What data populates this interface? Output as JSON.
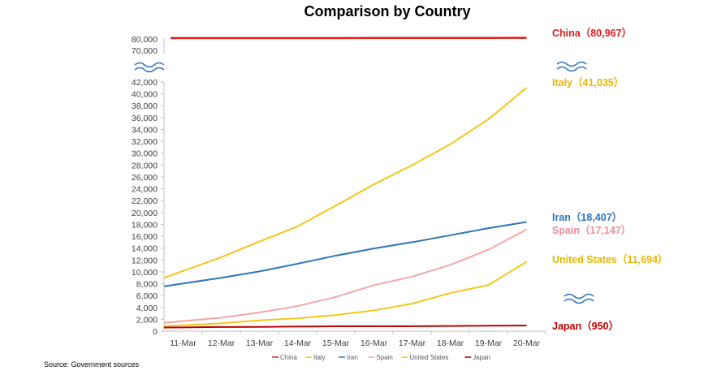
{
  "chart_data": {
    "type": "line",
    "title": "Comparison by Country",
    "source": "Source: Government sources",
    "categories": [
      "11-Mar",
      "12-Mar",
      "13-Mar",
      "14-Mar",
      "15-Mar",
      "16-Mar",
      "17-Mar",
      "18-Mar",
      "19-Mar",
      "20-Mar"
    ],
    "y_ticks_lower": [
      "0",
      "2,000",
      "4,000",
      "6,000",
      "8,000",
      "10,000",
      "12,000",
      "14,000",
      "16,000",
      "18,000",
      "20,000",
      "22,000",
      "24,000",
      "26,000",
      "28,000",
      "30,000",
      "32,000",
      "34,000",
      "36,000",
      "38,000",
      "40,000",
      "42,000"
    ],
    "y_ticks_upper": [
      "70,000",
      "80,000"
    ],
    "ylim_lower": [
      0,
      42000
    ],
    "ylim_upper": [
      70000,
      80000
    ],
    "axis_break": true,
    "grid": false,
    "legend_position": "bottom",
    "series": [
      {
        "name": "China",
        "color": "#e31a1c",
        "values": [
          80778,
          80793,
          80813,
          80824,
          80844,
          80860,
          80881,
          80894,
          80928,
          80967
        ],
        "end_label": "China（80,967）",
        "label_color": "#e31a1c"
      },
      {
        "name": "Italy",
        "color": "#f5c518",
        "values": [
          10149,
          12462,
          15113,
          17660,
          21157,
          24747,
          27980,
          31506,
          35713,
          41035
        ],
        "end_label": "Italy（41,035）",
        "label_color": "#e6b800"
      },
      {
        "name": "Iran",
        "color": "#2e75b6",
        "values": [
          8042,
          9000,
          10075,
          11364,
          12729,
          13938,
          14991,
          16169,
          17361,
          18407
        ],
        "end_label": "Iran（18,407）",
        "label_color": "#2e75b6"
      },
      {
        "name": "Spain",
        "color": "#f4a6a6",
        "values": [
          1695,
          2277,
          3146,
          4231,
          5753,
          7753,
          9191,
          11178,
          13716,
          17147
        ],
        "end_label": "Spain（17,147）",
        "label_color": "#f28b9b"
      },
      {
        "name": "United States",
        "color": "#f5c518",
        "values": [
          1004,
          1323,
          1832,
          2179,
          2727,
          3499,
          4632,
          6421,
          7786,
          11694
        ],
        "end_label": "United States（11,694）",
        "label_color": "#e6b800"
      },
      {
        "name": "Japan",
        "color": "#c00000",
        "values": [
          639,
          701,
          716,
          780,
          814,
          825,
          829,
          873,
          926,
          950
        ],
        "end_label": "Japan（950）",
        "label_color": "#c00000"
      }
    ]
  }
}
